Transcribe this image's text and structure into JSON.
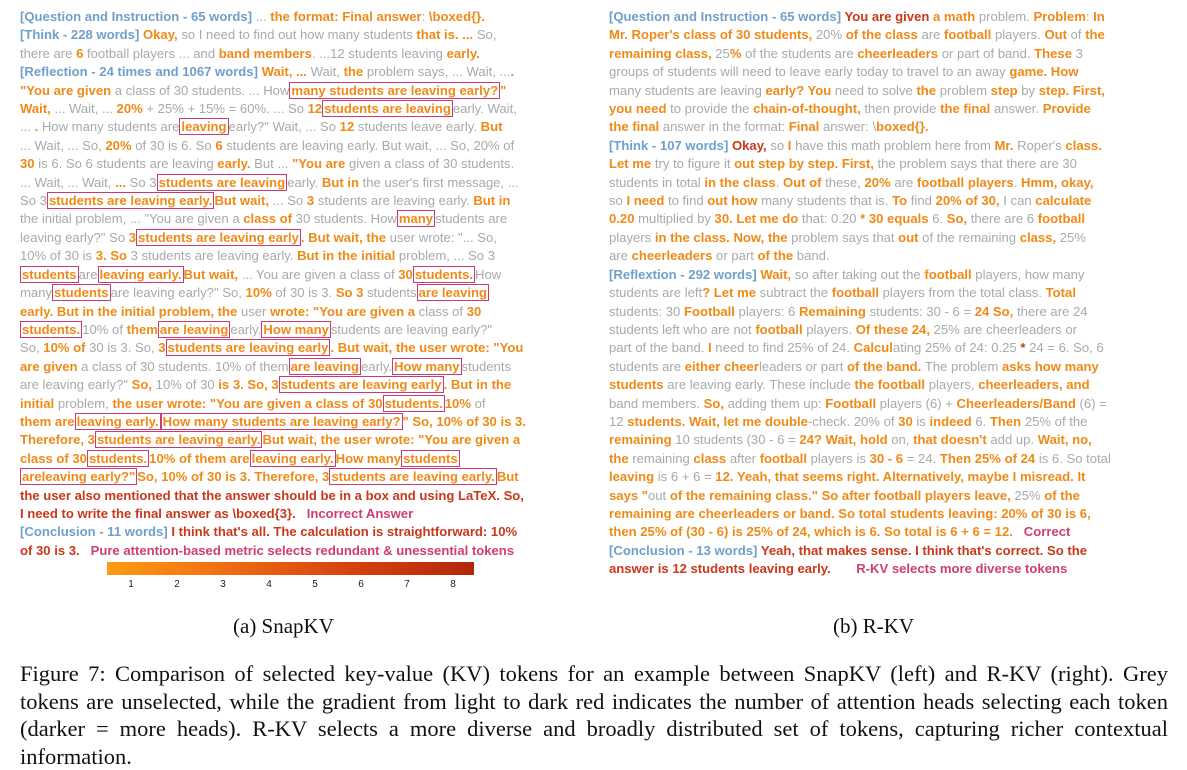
{
  "left": {
    "question_head": "[Question and Instruction - 65 words]",
    "think_head": "[Think - 228 words]",
    "reflection_head": "[Reflection - 24 times and 1067 words]",
    "conclusion_head": "[Conclusion - 11 words]",
    "incorrect_label": "Incorrect Answer",
    "pink_note": "Pure attention-based metric selects redundant & unessential tokens",
    "colorbar_ticks": [
      "1",
      "2",
      "3",
      "4",
      "5",
      "6",
      "7",
      "8"
    ]
  },
  "right": {
    "question_head": "[Question and Instruction - 65 words]",
    "think_head": "[Think - 107 words]",
    "reflexion_head": "[Reflextion - 292 words]",
    "conclusion_head": "[Conclusion - 13 words]",
    "correct_label": "Correct",
    "pink_note": "R-KV selects more diverse tokens"
  },
  "subcaptions": {
    "a": "(a) SnapKV",
    "b": "(b) R-KV"
  },
  "caption": "Figure 7: Comparison of selected key-value (KV) tokens for an example between SnapKV (left) and R-KV (right). Grey tokens are unselected, while the gradient from light to dark red indicates the number of attention heads selecting each token (darker = more heads). R-KV selects a more diverse and broadly distributed set of tokens, capturing richer contextual information."
}
